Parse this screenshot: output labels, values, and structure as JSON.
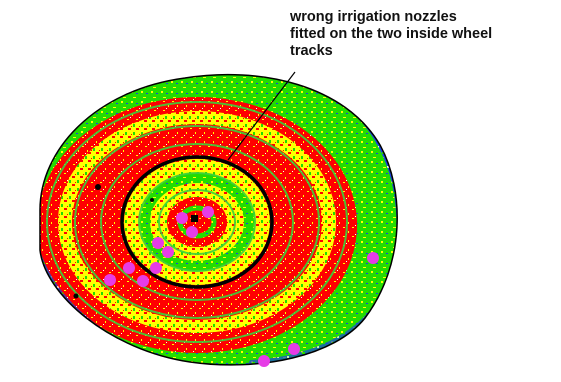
{
  "annotation": {
    "text": "wrong irrigation nozzles\nfitted on the two inside wheel\ntracks"
  },
  "map": {
    "legend_colors": {
      "background": "#ffffff",
      "outside_field": "#ffffff",
      "red_zone": "#ff0000",
      "yellow_zone": "#ffff00",
      "green_zone": "#22dd00",
      "blue_zone": "#1a44e0",
      "wheel_track_highlight": "#000000",
      "sample_points": "#e63ce6",
      "pivot_center": "#000000"
    },
    "icons": [
      "center-pivot-icon",
      "sample-point-icon",
      "pointer-line-icon"
    ]
  }
}
